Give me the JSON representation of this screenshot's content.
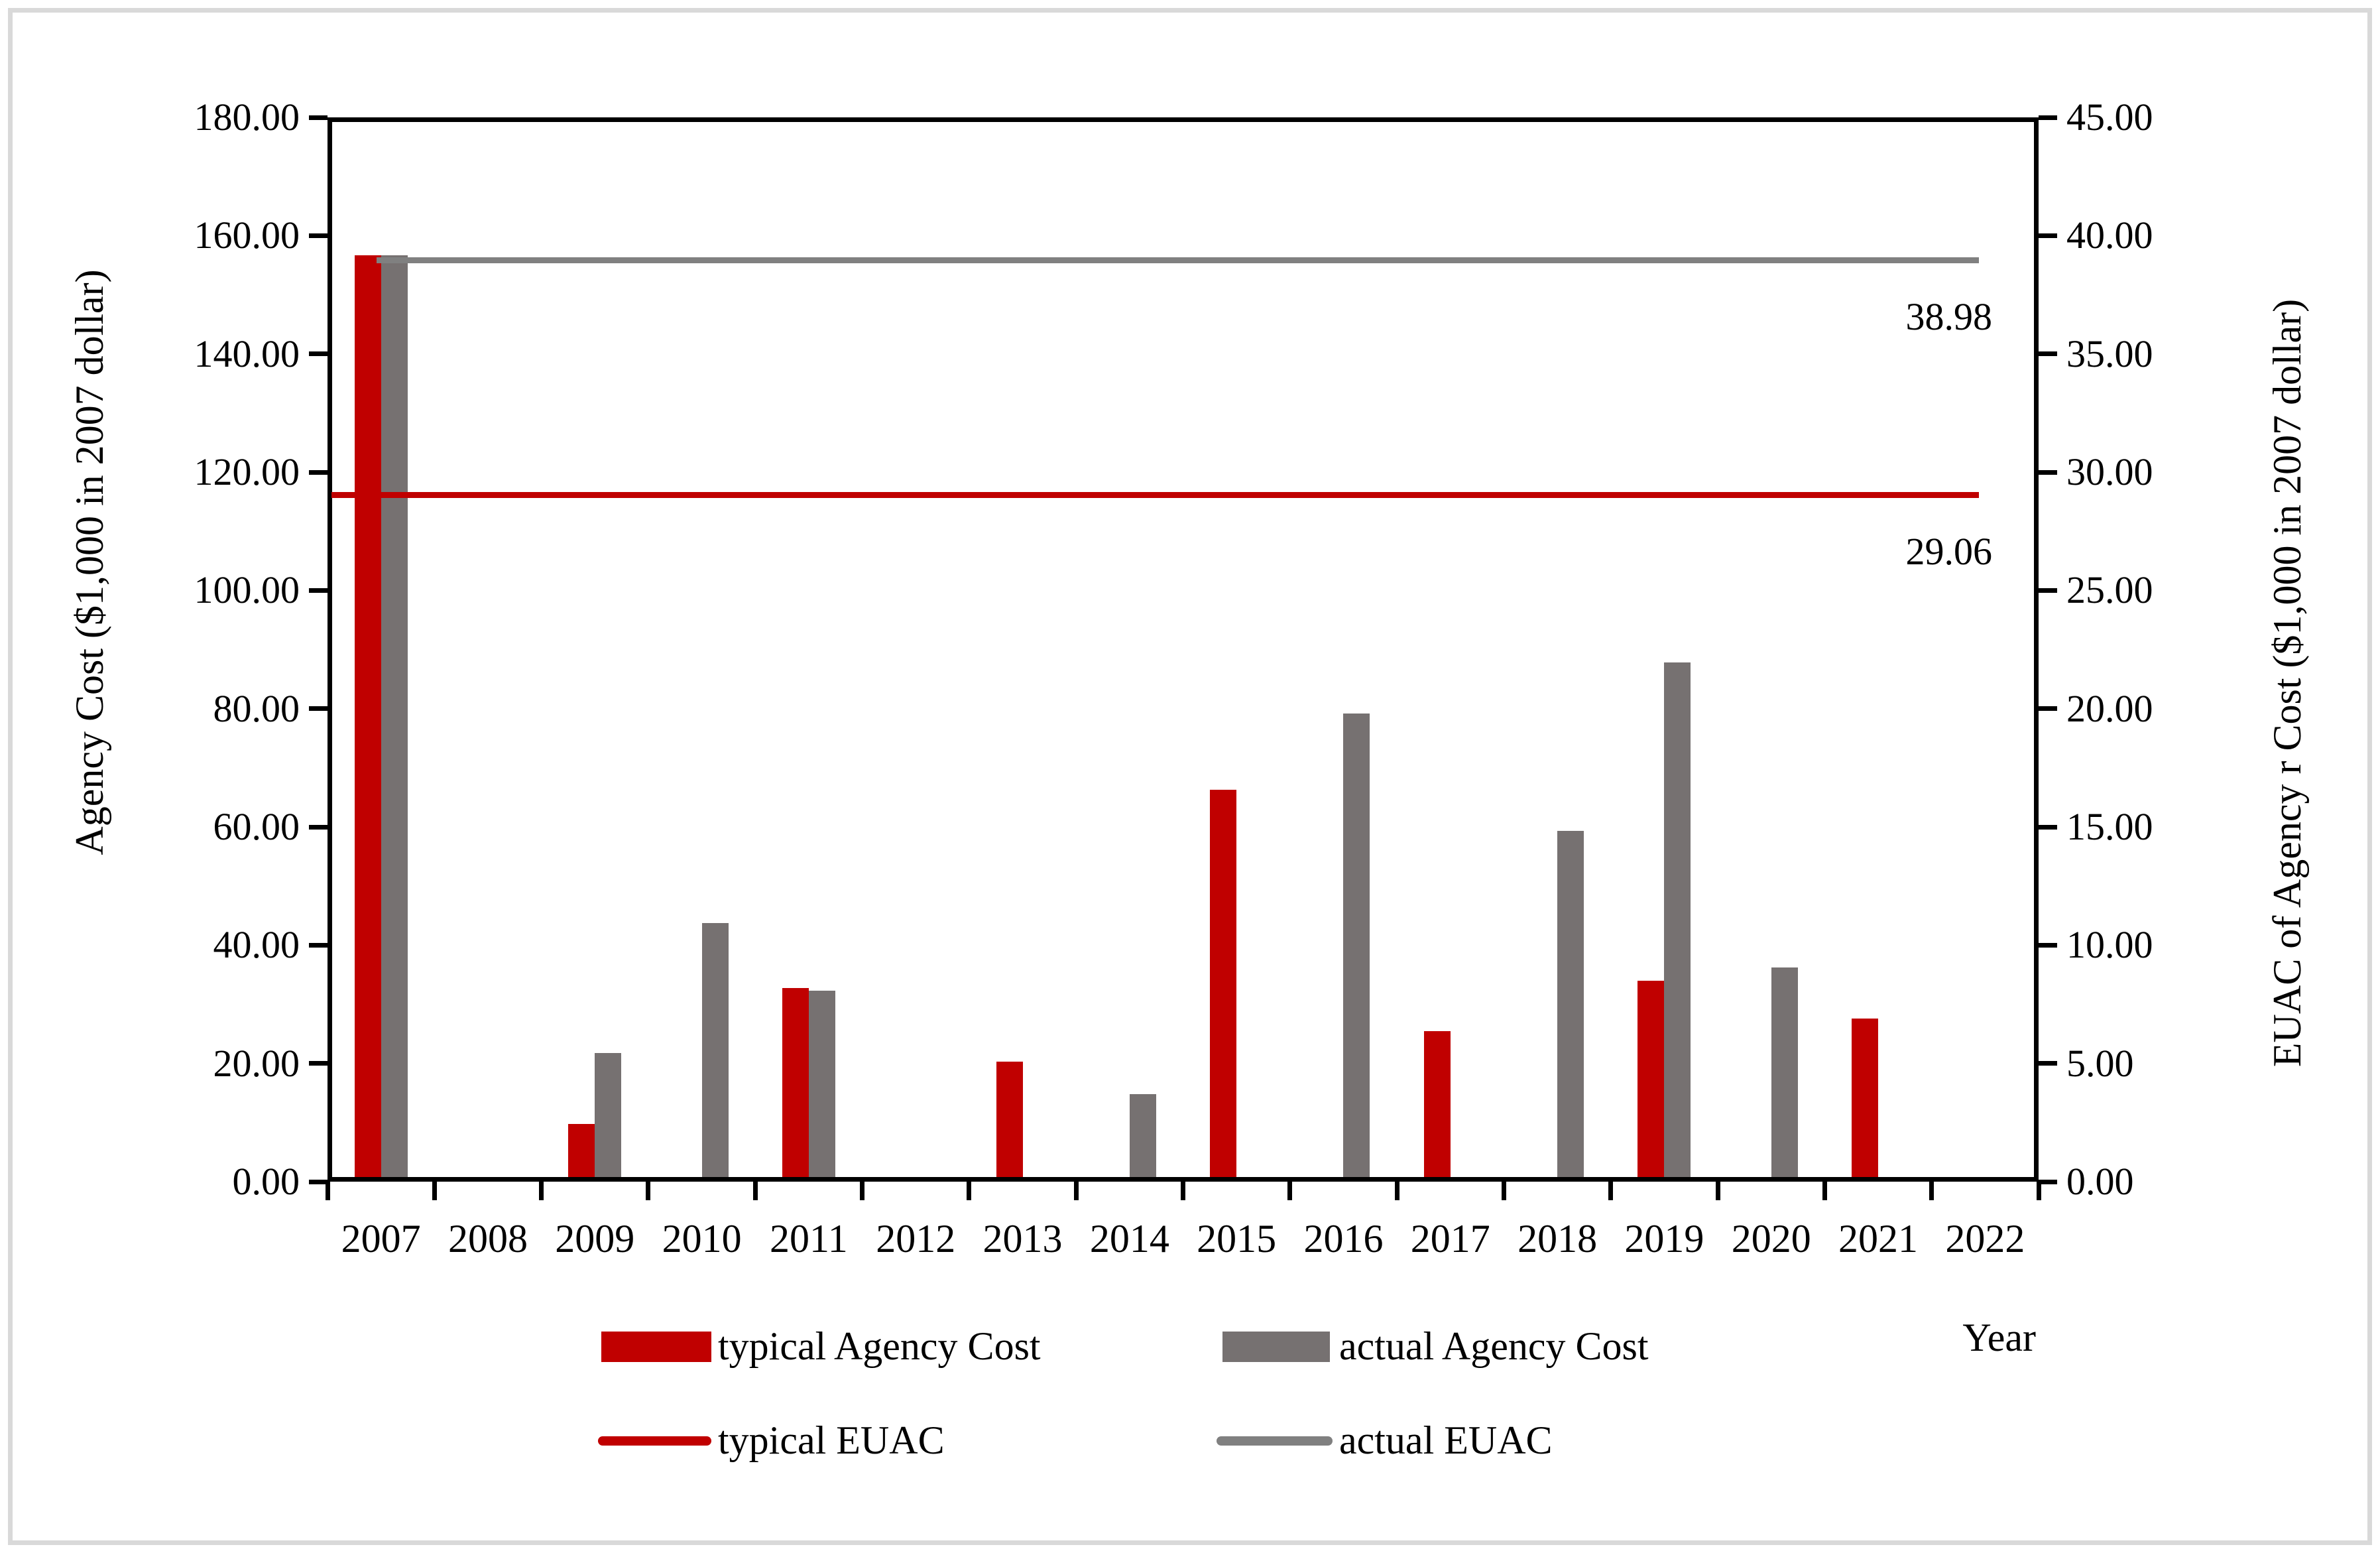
{
  "chart_data": {
    "type": "bar",
    "categories": [
      "2007",
      "2008",
      "2009",
      "2010",
      "2011",
      "2012",
      "2013",
      "2014",
      "2015",
      "2016",
      "2017",
      "2018",
      "2019",
      "2020",
      "2021",
      "2022"
    ],
    "series": [
      {
        "name": "typical Agency Cost",
        "type": "bar",
        "color": "#c00000",
        "values": [
          155.9,
          0,
          9.0,
          0,
          32.0,
          0,
          19.5,
          0,
          65.5,
          0,
          24.7,
          0,
          33.2,
          0,
          26.8,
          0
        ]
      },
      {
        "name": "actual Agency Cost",
        "type": "bar",
        "color": "#767171",
        "values": [
          155.9,
          0,
          21.0,
          43.0,
          31.5,
          0,
          0,
          14.0,
          0,
          78.4,
          0,
          58.5,
          87.0,
          35.4,
          0,
          0
        ]
      },
      {
        "name": "typical EUAC",
        "type": "line",
        "color": "#c00000",
        "value": 29.06
      },
      {
        "name": "actual EUAC",
        "type": "line",
        "color": "#808080",
        "value": 38.98
      }
    ],
    "left_axis": {
      "title": "Agency Cost ($1,000 in 2007 dollar)",
      "min": 0,
      "max": 180,
      "step": 20,
      "decimals": 2
    },
    "right_axis": {
      "title": "EUAC of Agency r Cost ($1,000 in 2007 dollar)",
      "min": 0,
      "max": 45,
      "step": 5,
      "decimals": 2
    },
    "x_axis": {
      "title": "Year"
    },
    "annotations": {
      "actual_euac_label": "38.98",
      "typical_euac_label": "29.06"
    },
    "legend_position": "bottom",
    "grid": false
  }
}
